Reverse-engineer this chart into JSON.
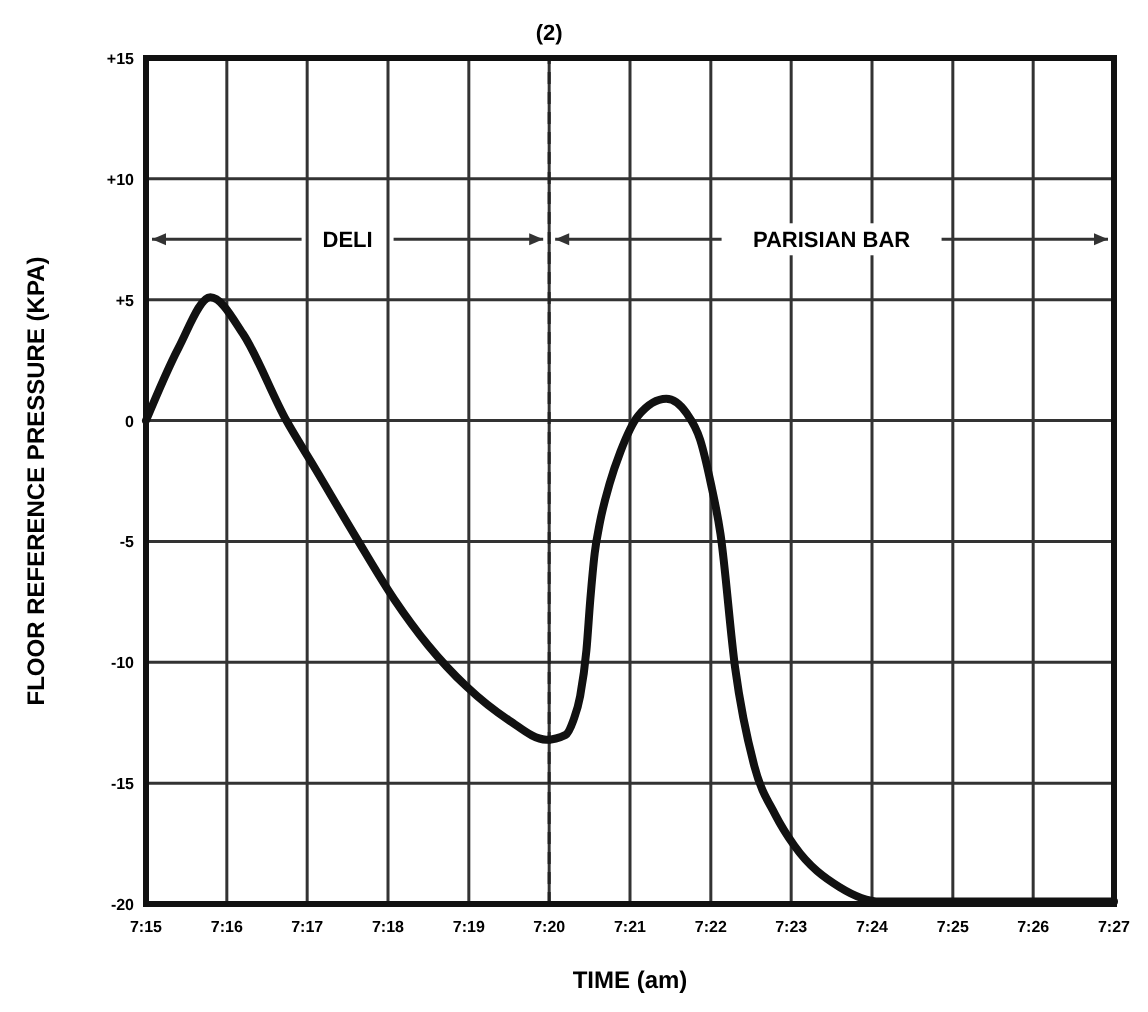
{
  "chart_data": {
    "type": "line",
    "xlabel": "TIME (am)",
    "ylabel": "FLOOR REFERENCE PRESSURE (KPA)",
    "xlim": [
      7.25,
      7.45
    ],
    "ylim": [
      -20,
      15
    ],
    "xticks": [
      {
        "value": 7.25,
        "label": "7:15"
      },
      {
        "value": 7.2667,
        "label": "7:16"
      },
      {
        "value": 7.2833,
        "label": "7:17"
      },
      {
        "value": 7.3,
        "label": "7:18"
      },
      {
        "value": 7.3167,
        "label": "7:19"
      },
      {
        "value": 7.3333,
        "label": "7:20"
      },
      {
        "value": 7.35,
        "label": "7:21"
      },
      {
        "value": 7.3667,
        "label": "7:22"
      },
      {
        "value": 7.3833,
        "label": "7:23"
      },
      {
        "value": 7.4,
        "label": "7:24"
      },
      {
        "value": 7.4167,
        "label": "7:25"
      },
      {
        "value": 7.4333,
        "label": "7:26"
      },
      {
        "value": 7.45,
        "label": "7:27"
      }
    ],
    "yticks": [
      {
        "value": 15,
        "label": "+15"
      },
      {
        "value": 10,
        "label": "+10"
      },
      {
        "value": 5,
        "label": "+5"
      },
      0,
      -5,
      -10,
      -15,
      -20
    ],
    "grid": true,
    "line_style": "solid",
    "marker": "none",
    "series": [
      {
        "color": "#111111",
        "x": [
          7.25,
          7.2567,
          7.2633,
          7.27,
          7.279,
          7.2847,
          7.2933,
          7.3013,
          7.3083,
          7.3162,
          7.325,
          7.3327,
          7.3367,
          7.3383,
          7.3397,
          7.341,
          7.3418,
          7.3427,
          7.3438,
          7.3458,
          7.348,
          7.3517,
          7.3575,
          7.3617,
          7.3645,
          7.3667,
          7.3687,
          7.3717,
          7.3757,
          7.38,
          7.384,
          7.3933,
          7.4017,
          7.4167,
          7.45
        ],
        "values": [
          0,
          3,
          5.1,
          3.6,
          0,
          -1.9,
          -4.8,
          -7.4,
          -9.3,
          -11,
          -12.4,
          -13.2,
          -13,
          -12.4,
          -11.4,
          -9.5,
          -7.4,
          -5.5,
          -4.2,
          -2.6,
          -1.3,
          0.2,
          0.9,
          0.3,
          -0.8,
          -2.6,
          -4.7,
          -10.2,
          -14.3,
          -16.3,
          -17.6,
          -19.3,
          -19.9,
          -19.9,
          -19.9
        ]
      }
    ],
    "ref_lines": [
      {
        "axis": "x",
        "value": 7.3333,
        "line_style": "dashed",
        "color": "#222222"
      }
    ],
    "annotations": [
      "(2)",
      {
        "text": "DELI",
        "x": 7.3333,
        "y": 7.5
      },
      "PARISIAN BAR"
    ]
  }
}
